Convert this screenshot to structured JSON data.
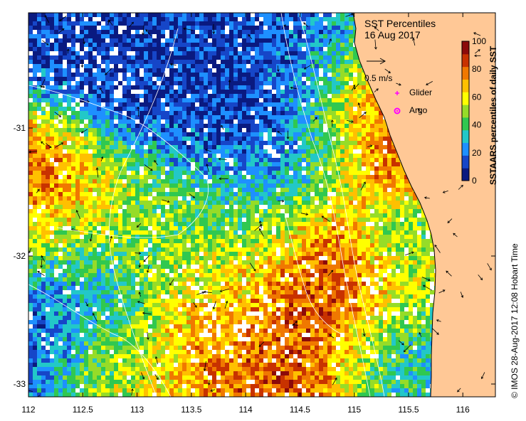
{
  "title_line1": "SST Percentiles",
  "title_line2": "16 Aug 2017",
  "vector_scale_label": "0.5 m/s",
  "legend": {
    "glider": "Glider",
    "argo": "Argo",
    "glider_color": "#ff00ff",
    "argo_color": "#ff00ff"
  },
  "colorbar": {
    "label": "SSTAARS percentiles of daily SST",
    "ticks": [
      "0",
      "20",
      "40",
      "60",
      "80",
      "100"
    ],
    "colors": [
      "#0a1a80",
      "#1646c8",
      "#1e90ff",
      "#22c8c8",
      "#30c850",
      "#96dc28",
      "#ffff00",
      "#ffc000",
      "#f07800",
      "#c83200",
      "#8c0a0a"
    ]
  },
  "credit": "© IMOS 28-Aug-2017 12:08 Hobart Time",
  "land_color": "#ffc896",
  "cloud_color": "#ffffff",
  "x_ticks": [
    "112",
    "112.5",
    "113",
    "113.5",
    "114",
    "114.5",
    "115",
    "115.5",
    "116"
  ],
  "y_ticks": [
    "-31",
    "-32",
    "-33"
  ],
  "chart_data": {
    "type": "heatmap",
    "x_range": [
      112,
      116.3
    ],
    "y_range": [
      -33.1,
      -30.1
    ],
    "x_ticks": [
      112,
      112.5,
      113,
      113.5,
      114,
      114.5,
      115,
      115.5,
      116
    ],
    "y_ticks": [
      -31,
      -32,
      -33
    ],
    "value_range": [
      0,
      100
    ],
    "legend_placement": "top-right"
  }
}
